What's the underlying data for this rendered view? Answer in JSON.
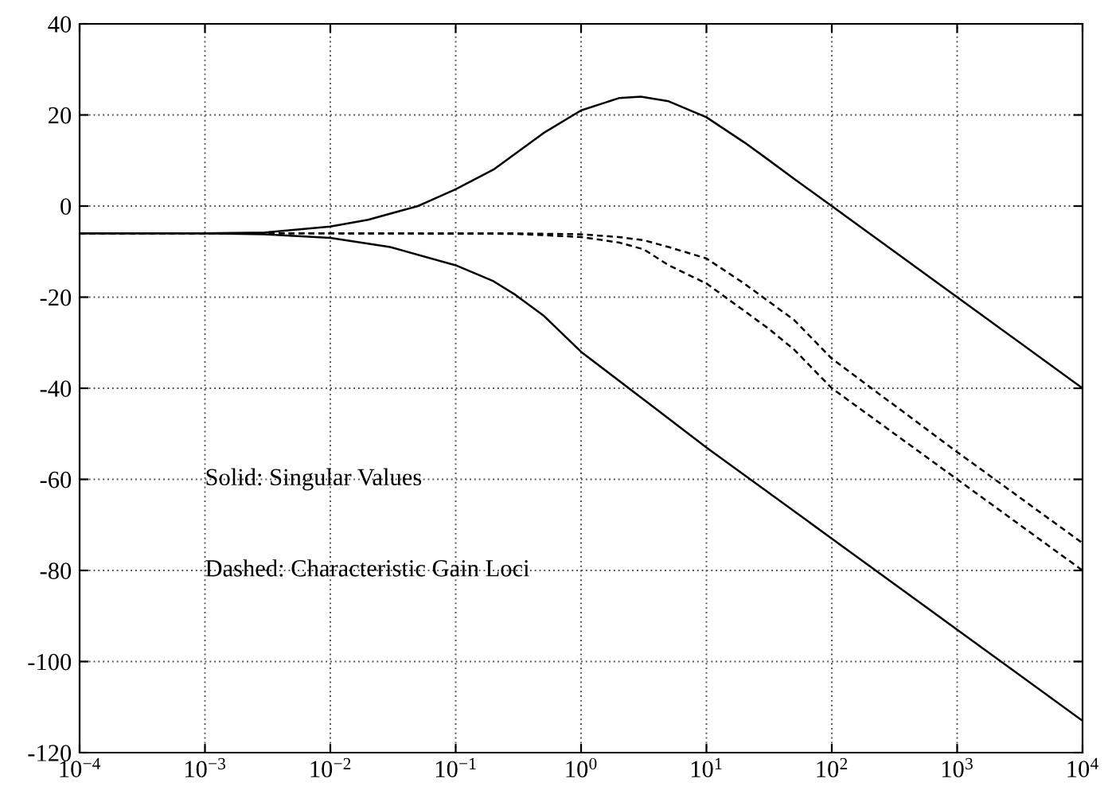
{
  "chart_data": {
    "type": "line",
    "xlim": [
      0.0001,
      10000
    ],
    "ylim": [
      -120,
      40
    ],
    "log": "x",
    "grid": true,
    "xticks": [
      {
        "value": 0.0001,
        "label": "10$^{−4}$"
      },
      {
        "value": 0.001,
        "label": "10$^{−3}$"
      },
      {
        "value": 0.01,
        "label": "10$^{−2}$"
      },
      {
        "value": 0.1,
        "label": "10$^{−1}$"
      },
      {
        "value": 1,
        "label": "10$^{0}$"
      },
      {
        "value": 10,
        "label": "10$^{1}$"
      },
      {
        "value": 100,
        "label": "10$^{2}$"
      },
      {
        "value": 1000,
        "label": "10$^{3}$"
      },
      {
        "value": 10000,
        "label": "10$^{4}$"
      }
    ],
    "yticks": [
      -120,
      -100,
      -80,
      -60,
      -40,
      -20,
      0,
      20,
      40
    ],
    "series": [
      {
        "color": "#000000",
        "line_style": "solid",
        "x": [
          0.0001,
          0.001,
          0.003,
          0.01,
          0.02,
          0.05,
          0.1,
          0.2,
          0.5,
          1,
          2,
          3,
          5,
          10,
          20,
          30,
          50,
          100,
          1000,
          10000
        ],
        "values": [
          -6,
          -6,
          -5.8,
          -4.5,
          -3,
          0,
          3.7,
          8,
          16,
          21,
          23.7,
          24,
          23,
          19.5,
          14,
          10.5,
          6,
          0,
          -20,
          -40
        ]
      },
      {
        "color": "#000000",
        "line_style": "solid",
        "x": [
          0.0001,
          0.001,
          0.003,
          0.01,
          0.03,
          0.1,
          0.2,
          0.3,
          0.5,
          1,
          3,
          10,
          100,
          1000,
          10000
        ],
        "values": [
          -6,
          -6,
          -6.2,
          -7,
          -9,
          -13,
          -16.5,
          -19.5,
          -24,
          -32,
          -42,
          -53,
          -73,
          -93,
          -113
        ]
      },
      {
        "color": "#000000",
        "line_style": "dashed",
        "x": [
          0.0001,
          0.01,
          0.3,
          1,
          2,
          3.16,
          5,
          10,
          20,
          31.6,
          50,
          100,
          1000,
          10000
        ],
        "values": [
          -6,
          -6,
          -6,
          -6.2,
          -6.8,
          -7.5,
          -9,
          -11.5,
          -17,
          -21,
          -25,
          -33.5,
          -54,
          -74
        ]
      },
      {
        "color": "#000000",
        "line_style": "dashed",
        "x": [
          0.0001,
          0.01,
          0.3,
          1,
          2,
          3.16,
          5,
          10,
          20,
          31.6,
          50,
          100,
          1000,
          10000
        ],
        "values": [
          -6,
          -6,
          -6.1,
          -6.8,
          -8,
          -9.5,
          -13,
          -17,
          -23,
          -27,
          -31.5,
          -40,
          -60,
          -80
        ]
      }
    ],
    "annotations": [
      "Solid: Singular Values",
      "Dashed: Characteristic Gain Loci"
    ]
  }
}
